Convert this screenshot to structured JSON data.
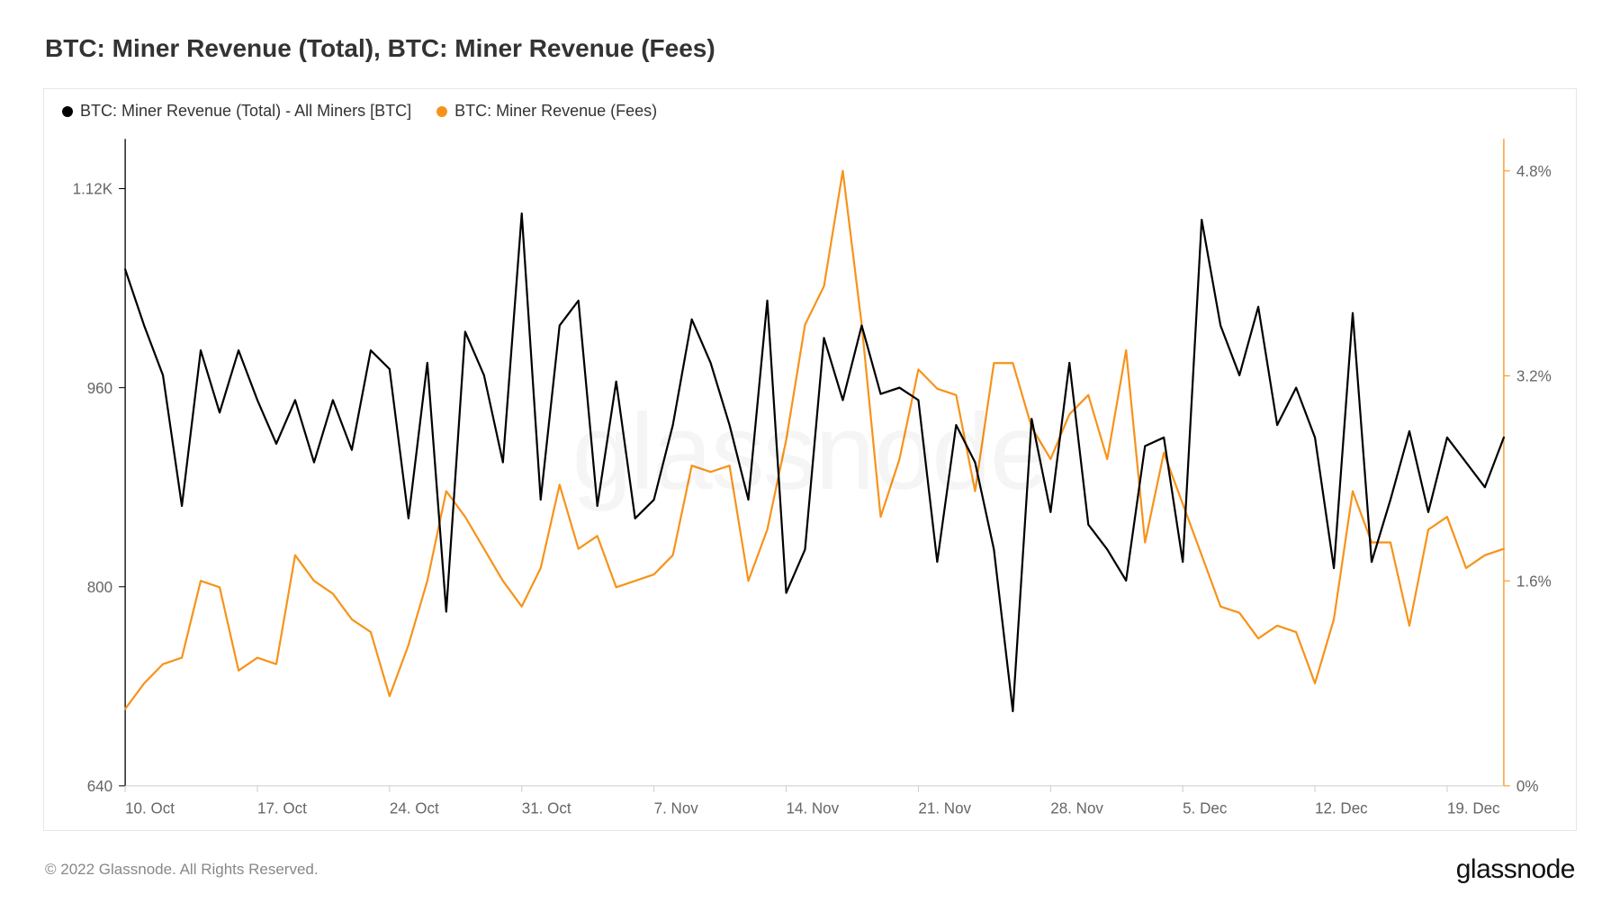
{
  "title": "BTC: Miner Revenue (Total), BTC: Miner Revenue (Fees)",
  "legend": {
    "series1": {
      "label": "BTC: Miner Revenue (Total) - All Miners [BTC]",
      "color": "#000000"
    },
    "series2": {
      "label": "BTC: Miner Revenue (Fees)",
      "color": "#f7931a"
    }
  },
  "watermark": "glassnode",
  "copyright": "© 2022 Glassnode. All Rights Reserved.",
  "brand": "glassnode",
  "chart": {
    "type": "line",
    "background_color": "#ffffff",
    "border_color": "#e6e6e6",
    "line_width": 2.2,
    "left_axis": {
      "min": 640,
      "max": 1160,
      "ticks": [
        640,
        800,
        960,
        1120
      ],
      "tick_labels": [
        "640",
        "800",
        "960",
        "1.12K"
      ],
      "axis_color": "#f7931a",
      "label_color": "#666666"
    },
    "right_axis": {
      "min": 0,
      "max": 5.05,
      "ticks": [
        0,
        1.6,
        3.2,
        4.8
      ],
      "tick_labels": [
        "0%",
        "1.6%",
        "3.2%",
        "4.8%"
      ],
      "axis_color": "#f7931a",
      "label_color": "#666666"
    },
    "x_axis": {
      "count": 74,
      "tick_indices": [
        0,
        7,
        14,
        21,
        28,
        35,
        42,
        49,
        56,
        63,
        70
      ],
      "tick_labels": [
        "10. Oct",
        "17. Oct",
        "24. Oct",
        "31. Oct",
        "7. Nov",
        "14. Nov",
        "21. Nov",
        "28. Nov",
        "5. Dec",
        "12. Dec",
        "19. Dec"
      ],
      "axis_color": "#cccccc",
      "label_color": "#666666"
    },
    "series1_values": [
      1055,
      1010,
      970,
      865,
      990,
      940,
      990,
      950,
      915,
      950,
      900,
      950,
      910,
      990,
      975,
      855,
      980,
      780,
      1005,
      970,
      900,
      1100,
      870,
      1010,
      1030,
      865,
      965,
      855,
      870,
      930,
      1015,
      980,
      930,
      870,
      1030,
      795,
      830,
      1000,
      950,
      1010,
      955,
      960,
      950,
      820,
      930,
      900,
      830,
      700,
      935,
      860,
      980,
      850,
      830,
      805,
      913,
      920,
      820,
      1095,
      1010,
      970,
      1025,
      930,
      960,
      920,
      815,
      1020,
      820,
      870,
      925,
      860,
      920,
      900,
      880,
      920
    ],
    "series2_values": [
      0.6,
      0.8,
      0.95,
      1.0,
      1.6,
      1.55,
      0.9,
      1.0,
      0.95,
      1.8,
      1.6,
      1.5,
      1.3,
      1.2,
      0.7,
      1.1,
      1.6,
      2.3,
      2.1,
      1.85,
      1.6,
      1.4,
      1.7,
      2.35,
      1.85,
      1.95,
      1.55,
      1.6,
      1.65,
      1.8,
      2.5,
      2.45,
      2.5,
      1.6,
      2.0,
      2.7,
      3.6,
      3.9,
      4.8,
      3.6,
      2.1,
      2.55,
      3.25,
      3.1,
      3.05,
      2.3,
      3.3,
      3.3,
      2.8,
      2.55,
      2.9,
      3.05,
      2.55,
      3.4,
      1.9,
      2.6,
      2.2,
      1.8,
      1.4,
      1.35,
      1.15,
      1.25,
      1.2,
      0.8,
      1.3,
      2.3,
      1.9,
      1.9,
      1.25,
      2.0,
      2.1,
      1.7,
      1.8,
      1.85
    ]
  }
}
